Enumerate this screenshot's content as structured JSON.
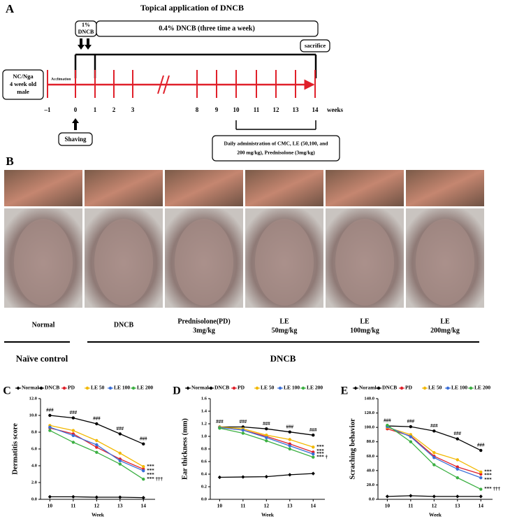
{
  "panel_a": {
    "letter": "A",
    "title": "Topical application of DNCB",
    "first_treatment": [
      "1%",
      "DNCB"
    ],
    "maintenance": "0.4% DNCB (three time a week)",
    "sacrifice": "sacrifice",
    "animal": [
      "NC/Nga",
      "4 week old",
      "male"
    ],
    "acclimation": "Acclimation",
    "timeline_labels": [
      "–1",
      "0",
      "1",
      "2",
      "3",
      "8",
      "9",
      "10",
      "11",
      "12",
      "13",
      "14"
    ],
    "unit": "weeks",
    "shaving": "Shaving",
    "administration": [
      "Daily administration of CMC, LE (50,100, and",
      "200 mg/kg), Prednisolone (3mg/kg)"
    ]
  },
  "panel_b": {
    "letter": "B",
    "groups": [
      [
        "Normal"
      ],
      [
        "DNCB"
      ],
      [
        "Prednisolone(PD)",
        "3mg/kg"
      ],
      [
        "LE",
        "50mg/kg"
      ],
      [
        "LE",
        "100mg/kg"
      ],
      [
        "LE",
        "200mg/kg"
      ]
    ],
    "cohorts": [
      "Naïve control",
      "DNCB"
    ]
  },
  "chart_data": [
    {
      "type": "line",
      "panel": "C",
      "y_label": "Dermatitis score",
      "x_label": "Week",
      "x": [
        10,
        11,
        12,
        13,
        14
      ],
      "xlim": [
        9.6,
        14.5
      ],
      "xticks": [
        10,
        11,
        12,
        13,
        14
      ],
      "ylim": [
        0,
        12
      ],
      "yticks": [
        {
          "value": 0,
          "label": "0.0"
        },
        {
          "value": 2,
          "label": "2.0"
        },
        {
          "value": 4,
          "label": "4.0"
        },
        {
          "value": 6,
          "label": "6.0"
        },
        {
          "value": 8,
          "label": "8.0"
        },
        {
          "value": 10,
          "label": "10.0"
        },
        {
          "value": 12,
          "label": "12.0"
        }
      ],
      "series": [
        {
          "name": "Normal",
          "color": "#000000",
          "values": [
            0.3,
            0.3,
            0.25,
            0.25,
            0.2
          ]
        },
        {
          "name": "DNCB",
          "color": "#000000",
          "values": [
            10.0,
            9.7,
            9.0,
            7.8,
            6.6
          ]
        },
        {
          "name": "PD",
          "color": "#e0202a",
          "values": [
            8.5,
            7.8,
            6.2,
            4.8,
            3.6
          ]
        },
        {
          "name": "LE 50",
          "color": "#f2b800",
          "values": [
            8.8,
            8.2,
            7.0,
            5.5,
            3.9
          ]
        },
        {
          "name": "LE 100",
          "color": "#3a6fd8",
          "values": [
            8.6,
            7.6,
            6.5,
            4.6,
            3.4
          ]
        },
        {
          "name": "LE 200",
          "color": "#3cb043",
          "values": [
            8.2,
            6.8,
            5.6,
            4.2,
            2.4
          ]
        }
      ],
      "annotations": [
        {
          "text": "###",
          "x": 10,
          "y": 10.0
        },
        {
          "text": "###",
          "x": 11,
          "y": 9.7
        },
        {
          "text": "###",
          "x": 12,
          "y": 9.0
        },
        {
          "text": "###",
          "x": 13,
          "y": 7.8
        },
        {
          "text": "###",
          "x": 14,
          "y": 6.6
        },
        {
          "text": "***",
          "x": 14,
          "y": 3.9
        },
        {
          "text": "***",
          "x": 14,
          "y": 3.4
        },
        {
          "text": "***",
          "x": 14,
          "y": 2.9
        },
        {
          "text": "*** †††",
          "x": 14,
          "y": 2.4
        }
      ]
    },
    {
      "type": "line",
      "panel": "D",
      "y_label": "Ear thickness (mm)",
      "x_label": "Week",
      "x": [
        10,
        11,
        12,
        13,
        14
      ],
      "xlim": [
        9.6,
        14.5
      ],
      "xticks": [
        10,
        11,
        12,
        13,
        14
      ],
      "ylim": [
        0,
        1.6
      ],
      "yticks": [
        {
          "value": 0,
          "label": "0.0"
        },
        0.2,
        0.4,
        0.6,
        0.8,
        {
          "value": 1,
          "label": "1.0"
        },
        1.2,
        1.4,
        1.6
      ],
      "series": [
        {
          "name": "Normal",
          "color": "#000000",
          "values": [
            0.35,
            0.355,
            0.36,
            0.39,
            0.41
          ]
        },
        {
          "name": "DNCB",
          "color": "#000000",
          "values": [
            1.15,
            1.15,
            1.12,
            1.07,
            1.02
          ]
        },
        {
          "name": "PD",
          "color": "#e0202a",
          "values": [
            1.14,
            1.1,
            1.0,
            0.88,
            0.75
          ]
        },
        {
          "name": "LE 50",
          "color": "#f2b800",
          "values": [
            1.15,
            1.12,
            1.02,
            0.95,
            0.83
          ]
        },
        {
          "name": "LE 100",
          "color": "#3a6fd8",
          "values": [
            1.14,
            1.1,
            0.98,
            0.85,
            0.72
          ]
        },
        {
          "name": "LE 200",
          "color": "#3cb043",
          "values": [
            1.13,
            1.05,
            0.93,
            0.8,
            0.67
          ]
        }
      ],
      "annotations": [
        {
          "text": "###",
          "x": 10,
          "y": 1.15
        },
        {
          "text": "###",
          "x": 11,
          "y": 1.15
        },
        {
          "text": "###",
          "x": 12,
          "y": 1.12
        },
        {
          "text": "###",
          "x": 13,
          "y": 1.07
        },
        {
          "text": "###",
          "x": 14,
          "y": 1.02
        },
        {
          "text": "***",
          "x": 14,
          "y": 0.83
        },
        {
          "text": "***",
          "x": 14,
          "y": 0.76
        },
        {
          "text": "***",
          "x": 14,
          "y": 0.72
        },
        {
          "text": "*** †",
          "x": 14,
          "y": 0.67
        }
      ]
    },
    {
      "type": "line",
      "panel": "E",
      "y_label": "Scraching behavior",
      "x_label": "Week",
      "x": [
        10,
        11,
        12,
        13,
        14
      ],
      "xlim": [
        9.6,
        14.5
      ],
      "xticks": [
        10,
        11,
        12,
        13,
        14
      ],
      "ylim": [
        0,
        140
      ],
      "yticks": [
        {
          "value": 0,
          "label": "0.0"
        },
        {
          "value": 20,
          "label": "20.0"
        },
        {
          "value": 40,
          "label": "40.0"
        },
        {
          "value": 60,
          "label": "60.0"
        },
        {
          "value": 80,
          "label": "80.0"
        },
        {
          "value": 100,
          "label": "100.0"
        },
        {
          "value": 120,
          "label": "120.0"
        },
        {
          "value": 140,
          "label": "140.0"
        }
      ],
      "series": [
        {
          "name": "Noraml",
          "color": "#000000",
          "values": [
            4,
            5,
            4,
            4,
            4
          ]
        },
        {
          "name": "DNCB",
          "color": "#000000",
          "values": [
            102,
            101,
            95,
            84,
            68
          ]
        },
        {
          "name": "PD",
          "color": "#e0202a",
          "values": [
            98,
            88,
            60,
            45,
            35
          ]
        },
        {
          "name": "LE 50",
          "color": "#f2b800",
          "values": [
            100,
            90,
            65,
            55,
            38
          ]
        },
        {
          "name": "LE 100",
          "color": "#3a6fd8",
          "values": [
            101,
            87,
            58,
            42,
            30
          ]
        },
        {
          "name": "LE 200",
          "color": "#3cb043",
          "values": [
            103,
            80,
            48,
            30,
            14
          ]
        }
      ],
      "annotations": [
        {
          "text": "###",
          "x": 10,
          "y": 102
        },
        {
          "text": "###",
          "x": 11,
          "y": 101
        },
        {
          "text": "###",
          "x": 12,
          "y": 95
        },
        {
          "text": "###",
          "x": 13,
          "y": 84
        },
        {
          "text": "###",
          "x": 14,
          "y": 68
        },
        {
          "text": "***",
          "x": 14,
          "y": 38
        },
        {
          "text": "***",
          "x": 14,
          "y": 33
        },
        {
          "text": "***",
          "x": 14,
          "y": 27
        },
        {
          "text": "*** †††",
          "x": 14,
          "y": 14
        }
      ]
    }
  ]
}
